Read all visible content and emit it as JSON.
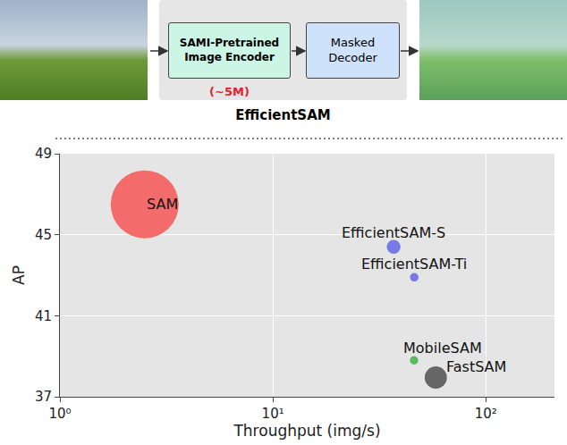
{
  "diagram": {
    "encoder": "SAMI-Pretrained Image Encoder",
    "encoder_params": "(~5M)",
    "decoder": "Masked Decoder",
    "caption": "EfficientSAM"
  },
  "chart_data": {
    "type": "scatter",
    "x_label": "Throughput (img/s)",
    "y_label": "AP",
    "labels": [
      "SAM",
      "EfficientSAM-S",
      "EfficientSAM-Ti",
      "MobileSAM",
      "FastSAM"
    ],
    "x": [
      2.5,
      36.9,
      46.1,
      46.0,
      58.2
    ],
    "values": [
      46.5,
      44.4,
      42.9,
      38.8,
      37.95
    ],
    "sizes": [
      636,
      26,
      10,
      9.7,
      68
    ],
    "colors": [
      "#f46b6b",
      "#7878e6",
      "#7878e6",
      "#5cb85c",
      "#666666"
    ],
    "marker": "circle",
    "log": "x",
    "xlim": [
      1,
      210
    ],
    "ylim": [
      37,
      49
    ],
    "xticks": [
      {
        "value": 1,
        "label": "10⁰"
      },
      {
        "value": 10,
        "label": "10¹"
      },
      {
        "value": 100,
        "label": "10²"
      }
    ],
    "yticks": [
      37,
      41,
      45,
      49
    ],
    "grid": true
  }
}
